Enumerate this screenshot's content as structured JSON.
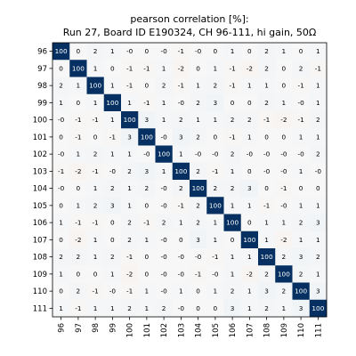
{
  "chart_data": {
    "type": "heatmap",
    "title_lines": [
      "pearson correlation [%]:",
      "Run 27, Board ID E190324, CH 96-111, hi gain, 50Ω"
    ],
    "xlabel": "",
    "ylabel": "",
    "x_categories": [
      "96",
      "97",
      "98",
      "99",
      "100",
      "101",
      "102",
      "103",
      "104",
      "105",
      "106",
      "107",
      "108",
      "109",
      "110",
      "111"
    ],
    "y_categories": [
      "96",
      "97",
      "98",
      "99",
      "100",
      "101",
      "102",
      "103",
      "104",
      "105",
      "106",
      "107",
      "108",
      "109",
      "110",
      "111"
    ],
    "value_range": [
      -100,
      100
    ],
    "colormap": "RdBu",
    "color_low": "#67001f",
    "color_mid": "#f7f7f7",
    "color_high": "#053061",
    "values": [
      [
        "100",
        "0",
        "2",
        "1",
        "-0",
        "0",
        "-0",
        "-1",
        "-0",
        "0",
        "1",
        "0",
        "2",
        "1",
        "0",
        "1"
      ],
      [
        "0",
        "100",
        "1",
        "0",
        "-1",
        "-1",
        "1",
        "-2",
        "0",
        "1",
        "-1",
        "-2",
        "2",
        "0",
        "2",
        "-1"
      ],
      [
        "2",
        "1",
        "100",
        "1",
        "-1",
        "0",
        "2",
        "-1",
        "1",
        "2",
        "-1",
        "1",
        "1",
        "0",
        "-1",
        "1"
      ],
      [
        "1",
        "0",
        "1",
        "100",
        "1",
        "-1",
        "1",
        "-0",
        "2",
        "3",
        "0",
        "0",
        "2",
        "1",
        "-0",
        "1"
      ],
      [
        "-0",
        "-1",
        "-1",
        "1",
        "100",
        "3",
        "1",
        "2",
        "1",
        "1",
        "2",
        "2",
        "-1",
        "-2",
        "-1",
        "2"
      ],
      [
        "0",
        "-1",
        "0",
        "-1",
        "3",
        "100",
        "-0",
        "3",
        "2",
        "0",
        "-1",
        "1",
        "0",
        "0",
        "1",
        "1"
      ],
      [
        "-0",
        "1",
        "2",
        "1",
        "1",
        "-0",
        "100",
        "1",
        "-0",
        "-0",
        "2",
        "-0",
        "-0",
        "-0",
        "-0",
        "2"
      ],
      [
        "-1",
        "-2",
        "-1",
        "-0",
        "2",
        "3",
        "1",
        "100",
        "2",
        "-1",
        "1",
        "0",
        "-0",
        "-0",
        "1",
        "-0"
      ],
      [
        "-0",
        "0",
        "1",
        "2",
        "1",
        "2",
        "-0",
        "2",
        "100",
        "2",
        "2",
        "3",
        "0",
        "-1",
        "0",
        "0"
      ],
      [
        "0",
        "1",
        "2",
        "3",
        "1",
        "0",
        "-0",
        "-1",
        "2",
        "100",
        "1",
        "1",
        "-1",
        "-0",
        "1",
        "1"
      ],
      [
        "1",
        "-1",
        "-1",
        "0",
        "2",
        "-1",
        "2",
        "1",
        "2",
        "1",
        "100",
        "0",
        "1",
        "1",
        "2",
        "3"
      ],
      [
        "0",
        "-2",
        "1",
        "0",
        "2",
        "1",
        "-0",
        "0",
        "3",
        "1",
        "0",
        "100",
        "1",
        "-2",
        "1",
        "1"
      ],
      [
        "2",
        "2",
        "1",
        "2",
        "-1",
        "0",
        "-0",
        "-0",
        "-0",
        "-1",
        "1",
        "1",
        "100",
        "2",
        "3",
        "2"
      ],
      [
        "1",
        "0",
        "0",
        "1",
        "-2",
        "0",
        "-0",
        "-0",
        "-1",
        "-0",
        "1",
        "-2",
        "2",
        "100",
        "2",
        "1"
      ],
      [
        "0",
        "2",
        "-1",
        "-0",
        "-1",
        "1",
        "-0",
        "1",
        "0",
        "1",
        "2",
        "1",
        "3",
        "2",
        "100",
        "3"
      ],
      [
        "1",
        "-1",
        "1",
        "1",
        "2",
        "1",
        "2",
        "-0",
        "0",
        "0",
        "3",
        "1",
        "2",
        "1",
        "3",
        "100"
      ]
    ],
    "grid": false,
    "legend": "none"
  }
}
